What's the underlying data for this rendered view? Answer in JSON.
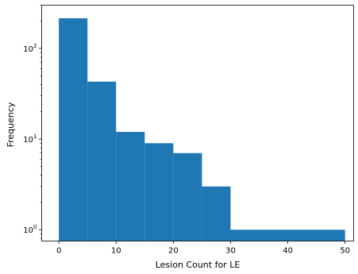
{
  "chart_data": {
    "type": "bar",
    "subtype": "histogram",
    "xlabel": "Lesion Count for LE",
    "ylabel": "Frequency",
    "y_scale": "log",
    "xlim": [
      -3,
      51.5
    ],
    "ylim": [
      0.75,
      300
    ],
    "bar_color": "#1f77b4",
    "grid": false,
    "bins": [
      {
        "x0": 0,
        "x1": 5,
        "count": 215
      },
      {
        "x0": 5,
        "x1": 10,
        "count": 43
      },
      {
        "x0": 10,
        "x1": 15,
        "count": 12
      },
      {
        "x0": 15,
        "x1": 20,
        "count": 9
      },
      {
        "x0": 20,
        "x1": 25,
        "count": 7
      },
      {
        "x0": 25,
        "x1": 30,
        "count": 3
      },
      {
        "x0": 30,
        "x1": 50,
        "count": 1
      }
    ],
    "x_ticks": [
      0,
      10,
      20,
      30,
      40,
      50
    ],
    "x_tick_labels": [
      "0",
      "10",
      "20",
      "30",
      "40",
      "50"
    ],
    "y_ticks": [
      1,
      10,
      100
    ],
    "y_tick_labels": [
      {
        "base": "10",
        "exp": "0"
      },
      {
        "base": "10",
        "exp": "1"
      },
      {
        "base": "10",
        "exp": "2"
      }
    ]
  }
}
